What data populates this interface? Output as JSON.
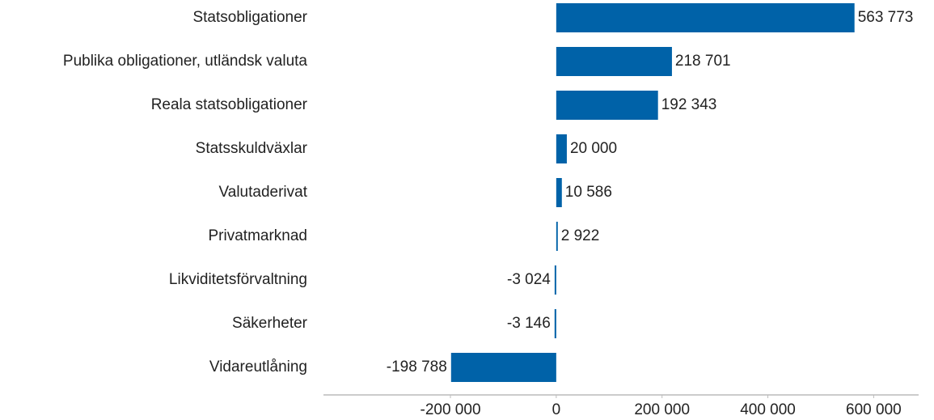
{
  "chart_data": {
    "type": "hbar",
    "categories": [
      "Statsobligationer",
      "Publika obligationer, utländsk valuta",
      "Reala statsobligationer",
      "Statsskuldväxlar",
      "Valutaderivat",
      "Privatmarknad",
      "Likviditetsförvaltning",
      "Säkerheter",
      "Vidareutlåning"
    ],
    "values": [
      563773,
      218701,
      192343,
      20000,
      10586,
      2922,
      -3024,
      -3146,
      -198788
    ],
    "value_labels": [
      "563 773",
      "218 701",
      "192 343",
      "20 000",
      "10 586",
      "2 922",
      "-3 024",
      "-3 146",
      "-198 788"
    ],
    "color": "#0062a8",
    "xlim": [
      -440000,
      685000
    ],
    "xticks": [
      {
        "value": -200000,
        "label": "-200 000"
      },
      0,
      {
        "value": 200000,
        "label": "200 000"
      },
      {
        "value": 400000,
        "label": "400 000"
      },
      {
        "value": 600000,
        "label": "600 000"
      }
    ],
    "grid": false
  }
}
